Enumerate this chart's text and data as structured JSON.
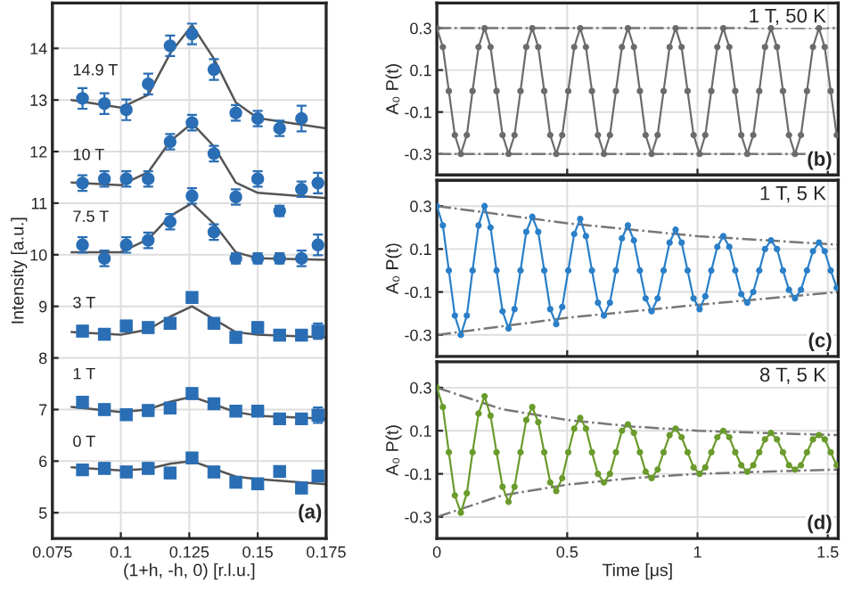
{
  "chart_data": [
    {
      "type": "scatter",
      "xlabel": "(1+h, -h, 0) [r.l.u.]",
      "ylabel": "Intensity [a.u.]",
      "annotations": [
        "(a)"
      ],
      "x": [
        0.086,
        0.094,
        0.102,
        0.11,
        0.118,
        0.126,
        0.134,
        0.142,
        0.15,
        0.158,
        0.166,
        0.172
      ],
      "xlim": [
        0.075,
        0.175
      ],
      "xticks": [
        0.075,
        0.1,
        0.125,
        0.15,
        0.175
      ],
      "ylim": [
        4.5,
        14.88
      ],
      "yticks": [
        5,
        6,
        7,
        8,
        9,
        10,
        11,
        12,
        13,
        14
      ],
      "grid": true,
      "series": [
        {
          "name": "14.9 T",
          "color": "#2a6eb5",
          "marker": "circle",
          "values": [
            13.03,
            12.93,
            12.81,
            13.31,
            14.05,
            14.28,
            13.59,
            12.75,
            12.64,
            12.45,
            12.64,
            null
          ],
          "errors": [
            0.2,
            0.2,
            0.2,
            0.2,
            0.2,
            0.2,
            0.2,
            0.15,
            0.15,
            0.15,
            0.25,
            null
          ]
        },
        {
          "name": "10 T",
          "color": "#2a6eb5",
          "marker": "circle",
          "values": [
            11.39,
            11.47,
            11.47,
            11.47,
            12.19,
            12.56,
            11.96,
            11.12,
            11.47,
            10.85,
            11.27,
            11.39
          ],
          "errors": [
            0.15,
            0.15,
            0.15,
            0.15,
            0.15,
            0.15,
            0.15,
            0.15,
            0.15,
            0.1,
            0.15,
            0.2
          ]
        },
        {
          "name": "7.5 T",
          "color": "#2a6eb5",
          "marker": "circle",
          "values": [
            10.19,
            9.93,
            10.19,
            10.28,
            10.64,
            11.14,
            10.44,
            9.93,
            9.93,
            9.93,
            9.93,
            10.19
          ],
          "errors": [
            0.15,
            0.15,
            0.15,
            0.15,
            0.15,
            0.15,
            0.15,
            0.1,
            0.1,
            0.1,
            0.15,
            0.2
          ]
        },
        {
          "name": "3 T",
          "color": "#2a6eb5",
          "marker": "square",
          "values": [
            8.52,
            8.46,
            8.62,
            8.59,
            8.67,
            9.17,
            8.67,
            8.4,
            8.59,
            8.44,
            8.44,
            8.52
          ],
          "errors": [
            0.1,
            0.1,
            0.1,
            0.1,
            0.1,
            0.1,
            0.1,
            0.1,
            0.1,
            0.1,
            0.1,
            0.15
          ]
        },
        {
          "name": "1 T",
          "color": "#2a6eb5",
          "marker": "square",
          "values": [
            7.14,
            7.0,
            6.9,
            6.98,
            7.03,
            7.31,
            7.11,
            6.97,
            6.97,
            6.82,
            6.82,
            6.89
          ],
          "errors": [
            0.1,
            0.1,
            0.1,
            0.1,
            0.1,
            0.1,
            0.1,
            0.1,
            0.1,
            0.1,
            0.1,
            0.15
          ]
        },
        {
          "name": "0 T",
          "color": "#2a6eb5",
          "marker": "square",
          "values": [
            5.83,
            5.86,
            5.79,
            5.86,
            5.77,
            6.06,
            5.79,
            5.59,
            5.56,
            5.8,
            5.48,
            5.71
          ],
          "errors": [
            0.1,
            0.1,
            0.1,
            0.1,
            0.1,
            0.1,
            0.1,
            0.1,
            0.1,
            0.1,
            0.1,
            0.1
          ]
        },
        {
          "type": "line",
          "color": "#555555",
          "marker": "none",
          "line_style": "solid",
          "x": [
            0.082,
            0.1,
            0.11,
            0.118,
            0.126,
            0.134,
            0.142,
            0.15,
            0.175
          ],
          "values": [
            13.0,
            12.85,
            13.1,
            13.9,
            14.45,
            13.8,
            12.95,
            12.65,
            12.45
          ]
        },
        {
          "type": "line",
          "color": "#555555",
          "marker": "none",
          "line_style": "solid",
          "x": [
            0.082,
            0.1,
            0.11,
            0.118,
            0.126,
            0.134,
            0.142,
            0.15,
            0.175
          ],
          "values": [
            11.4,
            11.35,
            11.6,
            12.2,
            12.55,
            12.1,
            11.4,
            11.2,
            11.1
          ]
        },
        {
          "type": "line",
          "color": "#555555",
          "marker": "none",
          "line_style": "solid",
          "x": [
            0.082,
            0.1,
            0.11,
            0.118,
            0.126,
            0.134,
            0.142,
            0.15,
            0.175
          ],
          "values": [
            10.05,
            10.05,
            10.3,
            10.75,
            11.0,
            10.6,
            10.05,
            9.93,
            9.9
          ]
        },
        {
          "type": "line",
          "color": "#555555",
          "marker": "none",
          "line_style": "solid",
          "x": [
            0.082,
            0.1,
            0.11,
            0.118,
            0.126,
            0.134,
            0.142,
            0.15,
            0.175
          ],
          "values": [
            8.5,
            8.45,
            8.55,
            8.8,
            9.0,
            8.75,
            8.5,
            8.45,
            8.4
          ]
        },
        {
          "type": "line",
          "color": "#555555",
          "marker": "none",
          "line_style": "solid",
          "x": [
            0.082,
            0.1,
            0.11,
            0.118,
            0.126,
            0.134,
            0.142,
            0.15,
            0.175
          ],
          "values": [
            7.05,
            6.95,
            7.0,
            7.15,
            7.25,
            7.1,
            6.95,
            6.88,
            6.82
          ]
        },
        {
          "type": "line",
          "color": "#555555",
          "marker": "none",
          "line_style": "solid",
          "x": [
            0.082,
            0.1,
            0.11,
            0.118,
            0.126,
            0.134,
            0.142,
            0.15,
            0.175
          ],
          "values": [
            5.88,
            5.82,
            5.85,
            5.95,
            6.0,
            5.85,
            5.7,
            5.65,
            5.55
          ]
        }
      ]
    },
    {
      "type": "line",
      "ylabel": "A₀ P(t)",
      "annotations": [
        "1 T, 50 K",
        "(b)"
      ],
      "tick_labels": "y",
      "grid": true,
      "xlim": [
        0,
        1.54
      ],
      "xticks": [
        0,
        0.5,
        1,
        1.5
      ],
      "ylim": [
        -0.4,
        0.42
      ],
      "yticks": [
        -0.3,
        -0.1,
        0.1,
        0.3
      ],
      "x": [
        0,
        0.023,
        0.046,
        0.069,
        0.092,
        0.115,
        0.137,
        0.16,
        0.183,
        0.206,
        0.229,
        0.252,
        0.275,
        0.298,
        0.321,
        0.343,
        0.366,
        0.389,
        0.412,
        0.435,
        0.458,
        0.481,
        0.504,
        0.527,
        0.55,
        0.572,
        0.595,
        0.618,
        0.641,
        0.664,
        0.687,
        0.71,
        0.733,
        0.756,
        0.779,
        0.801,
        0.824,
        0.847,
        0.87,
        0.893,
        0.916,
        0.939,
        0.962,
        0.985,
        1.008,
        1.03,
        1.053,
        1.076,
        1.099,
        1.122,
        1.145,
        1.168,
        1.191,
        1.214,
        1.237,
        1.259,
        1.282,
        1.305,
        1.328,
        1.351,
        1.374,
        1.397,
        1.42,
        1.443,
        1.466,
        1.488,
        1.511,
        1.534
      ],
      "series": [
        {
          "type": "line",
          "color": "#777777",
          "marker": "none",
          "line_style": "dashdot",
          "x": [
            0,
            1.54
          ],
          "values": [
            0.3,
            0.3
          ]
        },
        {
          "type": "line",
          "color": "#777777",
          "marker": "none",
          "line_style": "dashdot",
          "x": [
            0,
            1.54
          ],
          "values": [
            -0.3,
            -0.3
          ]
        },
        {
          "color": "#6b6b6b",
          "marker": "circle",
          "line_style": "solid",
          "values": [
            0.3,
            0.21,
            0,
            -0.21,
            -0.3,
            -0.21,
            0,
            0.21,
            0.3,
            0.21,
            0,
            -0.21,
            -0.3,
            -0.21,
            0,
            0.21,
            0.3,
            0.21,
            0,
            -0.21,
            -0.3,
            -0.21,
            0,
            0.21,
            0.3,
            0.21,
            0,
            -0.21,
            -0.3,
            -0.21,
            0,
            0.21,
            0.3,
            0.21,
            0,
            -0.21,
            -0.3,
            -0.21,
            0,
            0.21,
            0.3,
            0.21,
            0,
            -0.21,
            -0.3,
            -0.21,
            0,
            0.21,
            0.3,
            0.21,
            0,
            -0.21,
            -0.3,
            -0.21,
            0,
            0.21,
            0.3,
            0.21,
            0,
            -0.21,
            -0.3,
            -0.21,
            0,
            0.21,
            0.3,
            0.21,
            0,
            -0.21
          ]
        }
      ]
    },
    {
      "type": "line",
      "ylabel": "A₀ P(t)",
      "annotations": [
        "1 T, 5 K",
        "(c)"
      ],
      "tick_labels": "y",
      "grid": true,
      "xlim": [
        0,
        1.54
      ],
      "xticks": [
        0,
        0.5,
        1,
        1.5
      ],
      "ylim": [
        -0.4,
        0.42
      ],
      "yticks": [
        -0.3,
        -0.1,
        0.1,
        0.3
      ],
      "x": [
        0,
        0.023,
        0.046,
        0.069,
        0.092,
        0.115,
        0.137,
        0.16,
        0.183,
        0.206,
        0.229,
        0.252,
        0.275,
        0.298,
        0.321,
        0.343,
        0.366,
        0.389,
        0.412,
        0.435,
        0.458,
        0.481,
        0.504,
        0.527,
        0.55,
        0.572,
        0.595,
        0.618,
        0.641,
        0.664,
        0.687,
        0.71,
        0.733,
        0.756,
        0.779,
        0.801,
        0.824,
        0.847,
        0.87,
        0.893,
        0.916,
        0.939,
        0.962,
        0.985,
        1.008,
        1.03,
        1.053,
        1.076,
        1.099,
        1.122,
        1.145,
        1.168,
        1.191,
        1.214,
        1.237,
        1.259,
        1.282,
        1.305,
        1.328,
        1.351,
        1.374,
        1.397,
        1.42,
        1.443,
        1.466,
        1.488,
        1.511,
        1.534
      ],
      "series": [
        {
          "type": "line",
          "color": "#777777",
          "marker": "none",
          "line_style": "dashdot",
          "x": [
            0,
            0.5,
            1,
            1.54
          ],
          "values": [
            0.3,
            0.22,
            0.16,
            0.12
          ]
        },
        {
          "type": "line",
          "color": "#777777",
          "marker": "none",
          "line_style": "dashdot",
          "x": [
            0,
            0.5,
            1,
            1.54
          ],
          "values": [
            -0.3,
            -0.22,
            -0.16,
            -0.1
          ]
        },
        {
          "color": "#2a7fc8",
          "marker": "circle",
          "line_style": "solid",
          "values": [
            0.3,
            0.21,
            0,
            -0.21,
            -0.3,
            -0.21,
            0,
            0.21,
            0.3,
            0.2,
            0,
            -0.19,
            -0.27,
            -0.18,
            0,
            0.18,
            0.25,
            0.18,
            0,
            -0.18,
            -0.25,
            -0.17,
            0,
            0.17,
            0.24,
            0.16,
            0,
            -0.15,
            -0.21,
            -0.15,
            0,
            0.15,
            0.21,
            0.14,
            0,
            -0.13,
            -0.19,
            -0.13,
            0,
            0.13,
            0.19,
            0.13,
            0,
            -0.13,
            -0.18,
            -0.12,
            0,
            0.11,
            0.16,
            0.11,
            0,
            -0.11,
            -0.15,
            -0.1,
            0,
            0.1,
            0.14,
            0.1,
            0,
            -0.09,
            -0.13,
            -0.09,
            0,
            0.09,
            0.13,
            0.09,
            0,
            -0.08
          ]
        }
      ]
    },
    {
      "type": "line",
      "xlabel": "Time [μs]",
      "ylabel": "A₀ P(t)",
      "annotations": [
        "8 T, 5 K",
        "(d)"
      ],
      "grid": true,
      "xlim": [
        0,
        1.54
      ],
      "xticks": [
        0,
        0.5,
        1,
        1.5
      ],
      "ylim": [
        -0.4,
        0.42
      ],
      "yticks": [
        -0.3,
        -0.1,
        0.1,
        0.3
      ],
      "x": [
        0,
        0.023,
        0.046,
        0.069,
        0.092,
        0.115,
        0.137,
        0.16,
        0.183,
        0.206,
        0.229,
        0.252,
        0.275,
        0.298,
        0.321,
        0.343,
        0.366,
        0.389,
        0.412,
        0.435,
        0.458,
        0.481,
        0.504,
        0.527,
        0.55,
        0.572,
        0.595,
        0.618,
        0.641,
        0.664,
        0.687,
        0.71,
        0.733,
        0.756,
        0.779,
        0.801,
        0.824,
        0.847,
        0.87,
        0.893,
        0.916,
        0.939,
        0.962,
        0.985,
        1.008,
        1.03,
        1.053,
        1.076,
        1.099,
        1.122,
        1.145,
        1.168,
        1.191,
        1.214,
        1.237,
        1.259,
        1.282,
        1.305,
        1.328,
        1.351,
        1.374,
        1.397,
        1.42,
        1.443,
        1.466,
        1.488,
        1.511,
        1.534
      ],
      "series": [
        {
          "type": "line",
          "color": "#777777",
          "marker": "none",
          "line_style": "dashdot",
          "x": [
            0,
            0.25,
            0.5,
            0.75,
            1,
            1.25,
            1.54
          ],
          "values": [
            0.3,
            0.2,
            0.15,
            0.12,
            0.1,
            0.09,
            0.08
          ]
        },
        {
          "type": "line",
          "color": "#777777",
          "marker": "none",
          "line_style": "dashdot",
          "x": [
            0,
            0.25,
            0.5,
            0.75,
            1,
            1.25,
            1.54
          ],
          "values": [
            -0.3,
            -0.2,
            -0.15,
            -0.12,
            -0.1,
            -0.09,
            -0.08
          ]
        },
        {
          "color": "#6a9b2c",
          "marker": "circle",
          "line_style": "solid",
          "values": [
            0.3,
            0.21,
            0,
            -0.2,
            -0.28,
            -0.19,
            0,
            0.18,
            0.26,
            0.17,
            0,
            -0.16,
            -0.23,
            -0.16,
            0,
            0.15,
            0.21,
            0.14,
            0,
            -0.14,
            -0.18,
            -0.12,
            0,
            0.11,
            0.16,
            0.11,
            0,
            -0.1,
            -0.14,
            -0.1,
            0,
            0.1,
            0.13,
            0.09,
            0,
            -0.09,
            -0.12,
            -0.08,
            0,
            0.08,
            0.11,
            0.07,
            0,
            -0.07,
            -0.1,
            -0.07,
            0,
            0.07,
            0.1,
            0.07,
            0,
            -0.06,
            -0.09,
            -0.06,
            0,
            0.06,
            0.09,
            0.06,
            0,
            -0.06,
            -0.08,
            -0.06,
            0,
            0.06,
            0.08,
            0.06,
            0,
            -0.06
          ]
        }
      ]
    }
  ]
}
